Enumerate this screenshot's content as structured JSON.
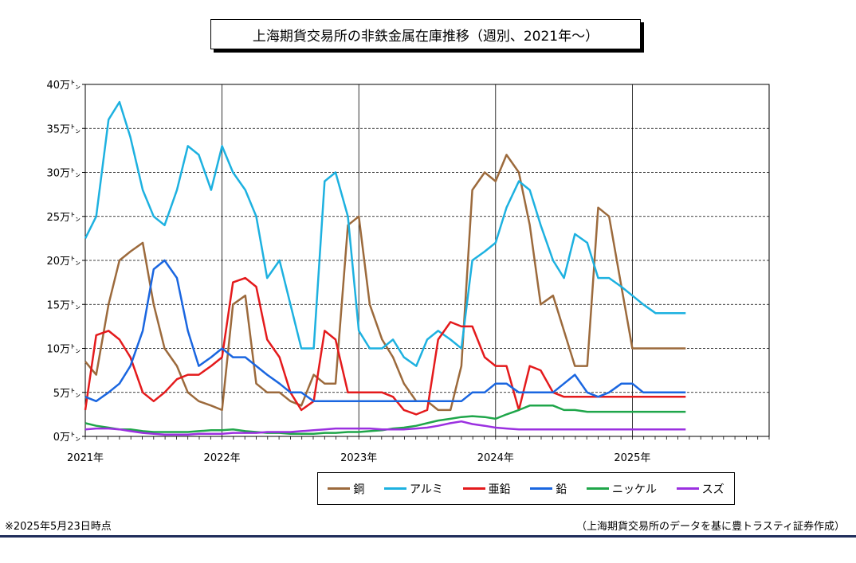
{
  "chart_data": {
    "type": "line",
    "title": "上海期貨交易所の非鉄金属在庫推移（週別、2021年～）",
    "y_tick_labels": [
      "0万㌧",
      "5万㌧",
      "10万㌧",
      "15万㌧",
      "20万㌧",
      "25万㌧",
      "30万㌧",
      "35万㌧",
      "40万㌧"
    ],
    "x_tick_labels": [
      "2021年",
      "2022年",
      "2023年",
      "2024年",
      "2025年"
    ],
    "ylim": [
      0,
      40
    ],
    "y_unit": "万㌧",
    "xlim": [
      2021.0,
      2026.0
    ],
    "grid": "horizontal dashed, vertical solid at each year",
    "legend_placement": "bottom",
    "x": [
      2021.0,
      2021.08,
      2021.17,
      2021.25,
      2021.33,
      2021.42,
      2021.5,
      2021.58,
      2021.67,
      2021.75,
      2021.83,
      2021.92,
      2022.0,
      2022.08,
      2022.17,
      2022.25,
      2022.33,
      2022.42,
      2022.5,
      2022.58,
      2022.67,
      2022.75,
      2022.83,
      2022.92,
      2023.0,
      2023.08,
      2023.17,
      2023.25,
      2023.33,
      2023.42,
      2023.5,
      2023.58,
      2023.67,
      2023.75,
      2023.83,
      2023.92,
      2024.0,
      2024.08,
      2024.17,
      2024.25,
      2024.33,
      2024.42,
      2024.5,
      2024.58,
      2024.67,
      2024.75,
      2024.83,
      2024.92,
      2025.0,
      2025.08,
      2025.17,
      2025.25,
      2025.33,
      2025.39
    ],
    "series": [
      {
        "name": "銅",
        "color": "#9c6a3c",
        "values": [
          8.5,
          7,
          15,
          20,
          21,
          22,
          15,
          10,
          8,
          5,
          4,
          3.5,
          3,
          15,
          16,
          6,
          5,
          5,
          4,
          3.5,
          7,
          6,
          6,
          24,
          25,
          15,
          11,
          9,
          6,
          4,
          4,
          3,
          3,
          8,
          28,
          30,
          29,
          32,
          30,
          24,
          15,
          16,
          12,
          8,
          8,
          26,
          25,
          17,
          10,
          10,
          10,
          10,
          10,
          10
        ]
      },
      {
        "name": "アルミ",
        "color": "#1db1e0",
        "values": [
          22.5,
          25,
          36,
          38,
          34,
          28,
          25,
          24,
          28,
          33,
          32,
          28,
          33,
          30,
          28,
          25,
          18,
          20,
          15,
          10,
          10,
          29,
          30,
          25,
          12,
          10,
          10,
          11,
          9,
          8,
          11,
          12,
          11,
          10,
          20,
          21,
          22,
          26,
          29,
          28,
          24,
          20,
          18,
          23,
          22,
          18,
          18,
          17,
          16,
          15,
          14,
          14,
          14,
          14
        ]
      },
      {
        "name": "亜鉛",
        "color": "#e41a1c",
        "values": [
          3,
          11.5,
          12,
          11,
          9,
          5,
          4,
          5,
          6.5,
          7,
          7,
          8,
          9,
          17.5,
          18,
          17,
          11,
          9,
          5,
          3,
          4,
          12,
          11,
          5,
          5,
          5,
          5,
          4.5,
          3,
          2.5,
          3,
          11,
          13,
          12.5,
          12.5,
          9,
          8,
          8,
          3,
          8,
          7.5,
          5,
          4.5,
          4.5,
          4.5,
          4.5,
          4.5,
          4.5,
          4.5,
          4.5,
          4.5,
          4.5,
          4.5,
          4.5
        ]
      },
      {
        "name": "鉛",
        "color": "#1a66e0",
        "values": [
          4.5,
          4,
          5,
          6,
          8,
          12,
          19,
          20,
          18,
          12,
          8,
          9,
          10,
          9,
          9,
          8,
          7,
          6,
          5,
          5,
          4,
          4,
          4,
          4,
          4,
          4,
          4,
          4,
          4,
          4,
          4,
          4,
          4,
          4,
          5,
          5,
          6,
          6,
          5,
          5,
          5,
          5,
          6,
          7,
          5,
          4.5,
          5,
          6,
          6,
          5,
          5,
          5,
          5,
          5
        ]
      },
      {
        "name": "ニッケル",
        "color": "#1fa64a",
        "values": [
          1.5,
          1.2,
          1,
          0.8,
          0.8,
          0.6,
          0.5,
          0.5,
          0.5,
          0.5,
          0.6,
          0.7,
          0.7,
          0.8,
          0.6,
          0.5,
          0.4,
          0.4,
          0.3,
          0.3,
          0.3,
          0.4,
          0.4,
          0.5,
          0.5,
          0.6,
          0.7,
          0.9,
          1,
          1.2,
          1.5,
          1.8,
          2,
          2.2,
          2.3,
          2.2,
          2,
          2.5,
          3,
          3.5,
          3.5,
          3.5,
          3,
          3,
          2.8,
          2.8,
          2.8,
          2.8,
          2.8,
          2.8,
          2.8,
          2.8,
          2.8,
          2.8
        ]
      },
      {
        "name": "スズ",
        "color": "#9b30e0",
        "values": [
          0.8,
          0.9,
          0.9,
          0.8,
          0.6,
          0.4,
          0.3,
          0.2,
          0.2,
          0.2,
          0.3,
          0.3,
          0.3,
          0.4,
          0.4,
          0.4,
          0.5,
          0.5,
          0.5,
          0.6,
          0.7,
          0.8,
          0.9,
          0.9,
          0.9,
          0.9,
          0.8,
          0.8,
          0.8,
          0.9,
          1,
          1.2,
          1.5,
          1.7,
          1.4,
          1.2,
          1,
          0.9,
          0.8,
          0.8,
          0.8,
          0.8,
          0.8,
          0.8,
          0.8,
          0.8,
          0.8,
          0.8,
          0.8,
          0.8,
          0.8,
          0.8,
          0.8,
          0.8
        ]
      }
    ]
  },
  "footnote": "※2025年5月23日時点",
  "source": "（上海期貨交易所のデータを基に豊トラスティ証券作成）"
}
